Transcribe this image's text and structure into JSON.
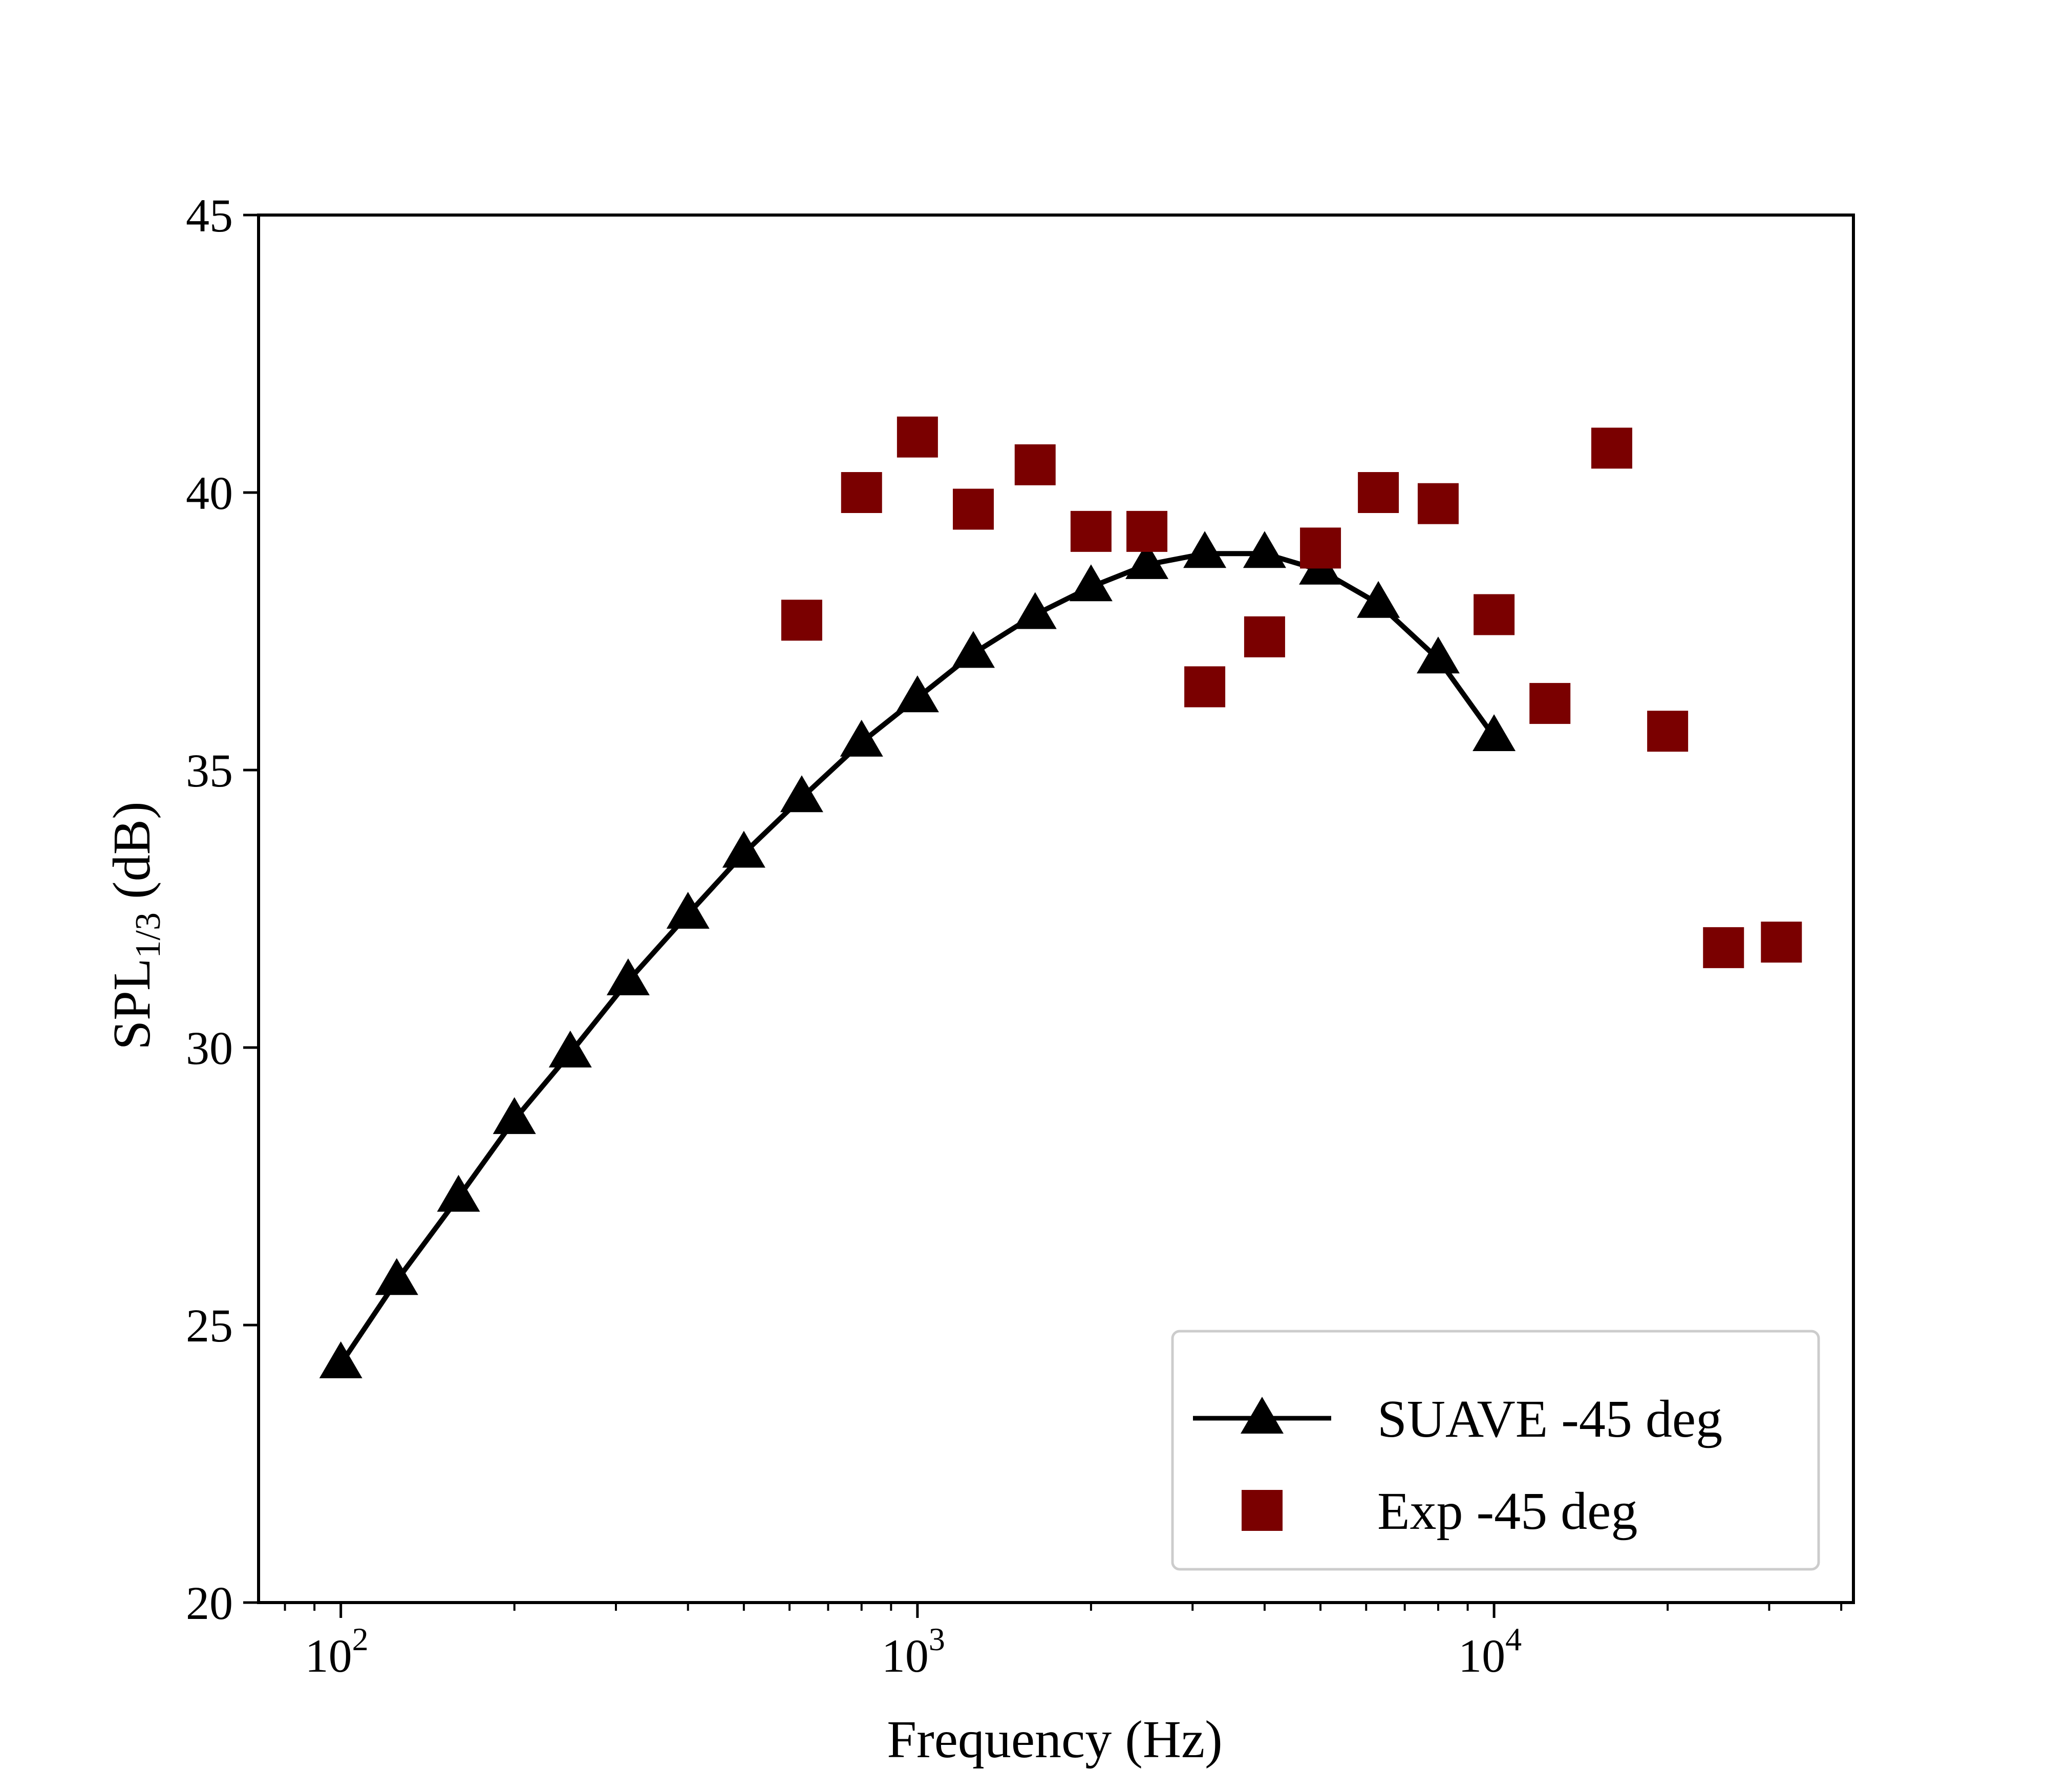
{
  "chart_data": {
    "type": "line",
    "title": "",
    "xlabel": "Frequency (Hz)",
    "ylabel": {
      "main": "SPL",
      "subscript": "1/3",
      "unit": " (dB)"
    },
    "xscale": "log",
    "xlim": [
      72,
      42000
    ],
    "ylim": [
      20,
      45
    ],
    "xticks": [
      {
        "value": 100,
        "base": "10",
        "exp": "2"
      },
      {
        "value": 1000,
        "base": "10",
        "exp": "3"
      },
      {
        "value": 10000,
        "base": "10",
        "exp": "4"
      }
    ],
    "yticks": [
      {
        "value": 20,
        "label": "20"
      },
      {
        "value": 25,
        "label": "25"
      },
      {
        "value": 30,
        "label": "30"
      },
      {
        "value": 35,
        "label": "35"
      },
      {
        "value": 40,
        "label": "40"
      },
      {
        "value": 45,
        "label": "45"
      }
    ],
    "grid": false,
    "legend_position": "lower-right",
    "series": [
      {
        "name": "SUAVE -45 deg",
        "style": "line-triangle",
        "color": "#000000",
        "x": [
          100,
          125,
          160,
          200,
          250,
          315,
          400,
          500,
          630,
          800,
          1000,
          1250,
          1600,
          2000,
          2500,
          3150,
          4000,
          5000,
          6300,
          8000,
          10000
        ],
        "y": [
          24.3,
          25.8,
          27.3,
          28.7,
          29.9,
          31.2,
          32.4,
          33.5,
          34.5,
          35.5,
          36.3,
          37.1,
          37.8,
          38.3,
          38.7,
          38.9,
          38.9,
          38.6,
          38.0,
          37.0,
          35.6
        ]
      },
      {
        "name": "Exp -45 deg",
        "style": "square",
        "color": "#7a0000",
        "x": [
          630,
          800,
          1000,
          1250,
          1600,
          2000,
          2500,
          3150,
          4000,
          5000,
          6300,
          8000,
          10000,
          12500,
          16000,
          20000,
          25000,
          31500
        ],
        "y": [
          37.7,
          40.0,
          41.0,
          39.7,
          40.5,
          39.3,
          39.3,
          36.5,
          37.4,
          39.0,
          40.0,
          39.8,
          37.8,
          36.2,
          40.8,
          35.7,
          31.8,
          31.9
        ]
      }
    ]
  }
}
